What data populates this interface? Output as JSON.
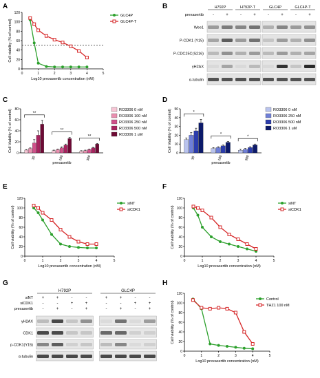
{
  "panels": {
    "A": {
      "letter": "A",
      "chart_data": {
        "type": "line",
        "ylabel": "Cell viability (% of control)",
        "xlabel": "Log10 prexasertib concentration (nM)",
        "xlim": [
          0,
          5
        ],
        "ylim": [
          0,
          120
        ],
        "xticks": [
          0,
          1,
          2,
          3,
          4,
          5
        ],
        "yticks": [
          0,
          20,
          40,
          60,
          80,
          100,
          120
        ],
        "hline": 50,
        "series": [
          {
            "name": "GLC4P",
            "color": "#2ca02c",
            "marker": "circle",
            "x": [
              0.5,
              0.75,
              1,
              1.5,
              2,
              2.5,
              3,
              3.5,
              4
            ],
            "y": [
              104,
              55,
              12,
              5,
              4,
              4,
              4,
              4,
              4
            ]
          },
          {
            "name": "GLC4P-T",
            "color": "#d62728",
            "marker": "square",
            "x": [
              0.5,
              0.75,
              1,
              1.5,
              2,
              2.5,
              3,
              3.5,
              4
            ],
            "y": [
              108,
              95,
              82,
              70,
              62,
              56,
              48,
              38,
              24
            ]
          }
        ]
      }
    },
    "B": {
      "letter": "B",
      "treatment_label": "prexasertib",
      "groups": [
        {
          "name": "H792P",
          "lanes": [
            "-",
            "+"
          ]
        },
        {
          "name": "H792P-T",
          "lanes": [
            "-",
            "+"
          ]
        },
        {
          "name": "GLC4P",
          "lanes": [
            "-",
            "+"
          ]
        },
        {
          "name": "GLC4P-T",
          "lanes": [
            "-",
            "+"
          ]
        }
      ],
      "proteins": [
        "Wee1",
        "P-CDK1 (Y15)",
        "P-CDC25C(S216)",
        "γH2AX",
        "α-tubulin"
      ]
    },
    "C": {
      "letter": "C",
      "chart_data": {
        "type": "bar",
        "ylabel": "Cell Viability (% of control)",
        "xlabel": "prexasertib",
        "ylim": [
          0,
          80
        ],
        "yticks": [
          0,
          20,
          40,
          60,
          80
        ],
        "categories": [
          "30",
          "100",
          "300"
        ],
        "series": [
          {
            "name": "RO3306 0 nM",
            "color": "#f7c5d5",
            "values": [
              5,
              4,
              3
            ]
          },
          {
            "name": "RO3306 100 nM",
            "color": "#ea8fb0",
            "values": [
              8,
              6,
              4
            ]
          },
          {
            "name": "RO3306 250 nM",
            "color": "#d0508a",
            "values": [
              18,
              9,
              6
            ]
          },
          {
            "name": "RO3306 500 nM",
            "color": "#a8235f",
            "values": [
              32,
              14,
              9
            ]
          },
          {
            "name": "RO3306 1 uM",
            "color": "#6e0a35",
            "values": [
              52,
              26,
              16
            ]
          }
        ],
        "errors": [
          [
            1,
            1,
            1
          ],
          [
            1,
            1,
            1
          ],
          [
            6,
            2,
            1
          ],
          [
            8,
            2,
            1
          ],
          [
            7,
            2,
            1
          ]
        ],
        "significance": [
          "**",
          "**",
          "**"
        ]
      }
    },
    "D": {
      "letter": "D",
      "chart_data": {
        "type": "bar",
        "ylabel": "Cell Viability (% of control)",
        "xlabel": "prexasertib",
        "ylim": [
          0,
          50
        ],
        "yticks": [
          0,
          10,
          20,
          30,
          40,
          50
        ],
        "categories": [
          "30",
          "100",
          "300"
        ],
        "series": [
          {
            "name": "RO3306 0 nM",
            "color": "#b9c3ee",
            "values": [
              15,
              5,
              3
            ]
          },
          {
            "name": "RO3306 250 nM",
            "color": "#6f7fd8",
            "values": [
              20,
              6,
              4
            ]
          },
          {
            "name": "RO3306 500 nM",
            "color": "#2c3dad",
            "values": [
              25,
              8,
              6
            ]
          },
          {
            "name": "RO3306 1 uM",
            "color": "#0c1a6a",
            "values": [
              34,
              12,
              9
            ]
          }
        ],
        "errors": [
          [
            2,
            1,
            1
          ],
          [
            3,
            1,
            1
          ],
          [
            3,
            1,
            1
          ],
          [
            4,
            1,
            1
          ]
        ],
        "significance": [
          "*",
          "*",
          "*"
        ]
      }
    },
    "E": {
      "letter": "E",
      "chart_data": {
        "type": "line",
        "ylabel": "Cell viability (% of control)",
        "xlabel": "Log10 prexasertib concentration (nM)",
        "xlim": [
          0,
          5
        ],
        "ylim": [
          0,
          120
        ],
        "xticks": [
          0,
          1,
          2,
          3,
          4,
          5
        ],
        "yticks": [
          0,
          20,
          40,
          60,
          80,
          100,
          120
        ],
        "series": [
          {
            "name": "siNT",
            "color": "#2ca02c",
            "marker": "circle",
            "x": [
              0.5,
              0.75,
              1,
              1.5,
              2,
              2.5,
              3,
              3.5,
              4
            ],
            "y": [
              100,
              90,
              75,
              45,
              25,
              20,
              18,
              17,
              17
            ]
          },
          {
            "name": "siCDK1",
            "color": "#d62728",
            "marker": "square",
            "x": [
              0.5,
              0.75,
              1,
              1.5,
              2,
              2.5,
              3,
              3.5,
              4
            ],
            "y": [
              105,
              100,
              90,
              75,
              55,
              40,
              30,
              25,
              25
            ]
          }
        ]
      }
    },
    "F": {
      "letter": "F",
      "chart_data": {
        "type": "line",
        "ylabel": "Cell viability (% of control)",
        "xlabel": "Log10 prexasertib concentration (nM)",
        "xlim": [
          0,
          5
        ],
        "ylim": [
          0,
          120
        ],
        "xticks": [
          0,
          1,
          2,
          3,
          4,
          5
        ],
        "yticks": [
          0,
          20,
          40,
          60,
          80,
          100,
          120
        ],
        "series": [
          {
            "name": "siNT",
            "color": "#2ca02c",
            "marker": "circle",
            "x": [
              0.5,
              0.75,
              1,
              1.5,
              2,
              2.5,
              3,
              3.5,
              4
            ],
            "y": [
              100,
              85,
              60,
              40,
              30,
              25,
              20,
              15,
              10
            ]
          },
          {
            "name": "siCDK1",
            "color": "#d62728",
            "marker": "square",
            "x": [
              0.5,
              0.75,
              1,
              1.5,
              2,
              2.5,
              3,
              3.5,
              4
            ],
            "y": [
              103,
              100,
              95,
              80,
              60,
              45,
              35,
              25,
              15
            ]
          }
        ]
      }
    },
    "G": {
      "letter": "G",
      "groups": [
        "H792P",
        "GLC4P"
      ],
      "row_labels": [
        "siNT",
        "siCDK1",
        "prexasertib"
      ],
      "rows": [
        [
          "+",
          "+",
          "-",
          "-",
          "+",
          "+",
          "-",
          "-"
        ],
        [
          "-",
          "-",
          "+",
          "+",
          "-",
          "-",
          "+",
          "+"
        ],
        [
          "-",
          "+",
          "-",
          "+",
          "-",
          "+",
          "-",
          "+"
        ]
      ],
      "proteins": [
        "γH2AX",
        "CDK1",
        "p-CDK1(Y15)",
        "α-tubulin"
      ]
    },
    "H": {
      "letter": "H",
      "chart_data": {
        "type": "line",
        "ylabel": "Cell viability (% of control)",
        "xlabel": "Log10 prexasertib concentration (nM)",
        "xlim": [
          0,
          5
        ],
        "ylim": [
          0,
          120
        ],
        "xticks": [
          0,
          1,
          2,
          3,
          4,
          5
        ],
        "yticks": [
          0,
          20,
          40,
          60,
          80,
          100,
          120
        ],
        "series": [
          {
            "name": "Control",
            "color": "#2ca02c",
            "marker": "circle",
            "x": [
              0.5,
              1,
              1.5,
              2,
              2.5,
              3,
              3.5,
              4
            ],
            "y": [
              108,
              88,
              15,
              12,
              10,
              8,
              6,
              5
            ]
          },
          {
            "name": "THZ1 100 nM",
            "color": "#d62728",
            "marker": "square",
            "x": [
              0.5,
              1,
              1.5,
              2,
              2.5,
              3,
              3.5,
              4
            ],
            "y": [
              106,
              90,
              88,
              90,
              88,
              80,
              40,
              15
            ]
          }
        ]
      }
    }
  }
}
